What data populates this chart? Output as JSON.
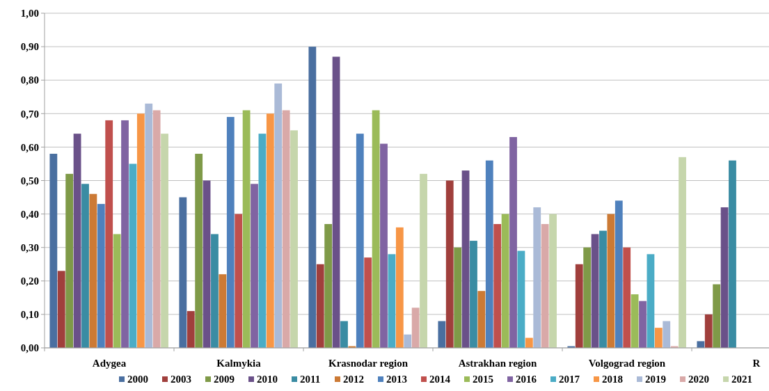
{
  "chart_data": {
    "type": "bar",
    "categories": [
      "Adygea",
      "Kalmykia",
      "Krasnodar region",
      "Astrakhan region",
      "Volgograd region",
      "R"
    ],
    "series": [
      {
        "name": "2000",
        "color": "#4a6fa0",
        "values": [
          0.58,
          0.45,
          0.9,
          0.08,
          0.005,
          0.02
        ]
      },
      {
        "name": "2003",
        "color": "#a03f3c",
        "values": [
          0.23,
          0.11,
          0.25,
          0.5,
          0.25,
          0.1
        ]
      },
      {
        "name": "2009",
        "color": "#7f9a48",
        "values": [
          0.52,
          0.58,
          0.37,
          0.3,
          0.3,
          0.19
        ]
      },
      {
        "name": "2010",
        "color": "#6a5189",
        "values": [
          0.64,
          0.5,
          0.87,
          0.53,
          0.34,
          0.42
        ]
      },
      {
        "name": "2011",
        "color": "#3a8ca3",
        "values": [
          0.49,
          0.34,
          0.08,
          0.32,
          0.35,
          0.56
        ]
      },
      {
        "name": "2012",
        "color": "#cc7a35",
        "values": [
          0.46,
          0.22,
          0.005,
          0.17,
          0.4,
          null
        ]
      },
      {
        "name": "2013",
        "color": "#4f81bd",
        "values": [
          0.43,
          0.69,
          0.64,
          0.56,
          0.44,
          null
        ]
      },
      {
        "name": "2014",
        "color": "#c0504d",
        "values": [
          0.68,
          0.4,
          0.27,
          0.37,
          0.3,
          null
        ]
      },
      {
        "name": "2015",
        "color": "#9bbb59",
        "values": [
          0.34,
          0.71,
          0.71,
          0.4,
          0.16,
          null
        ]
      },
      {
        "name": "2016",
        "color": "#8064a2",
        "values": [
          0.68,
          0.49,
          0.61,
          0.63,
          0.14,
          null
        ]
      },
      {
        "name": "2017",
        "color": "#4bacc6",
        "values": [
          0.55,
          0.64,
          0.28,
          0.29,
          0.28,
          null
        ]
      },
      {
        "name": "2018",
        "color": "#f79646",
        "values": [
          0.7,
          0.7,
          0.36,
          0.03,
          0.06,
          null
        ]
      },
      {
        "name": "2019",
        "color": "#aabad7",
        "values": [
          0.73,
          0.79,
          0.04,
          0.42,
          0.08,
          null
        ]
      },
      {
        "name": "2020",
        "color": "#d9a9a8",
        "values": [
          0.71,
          0.71,
          0.12,
          0.37,
          0.005,
          null
        ]
      },
      {
        "name": "2021",
        "color": "#c6d6ac",
        "values": [
          0.64,
          0.65,
          0.52,
          0.4,
          0.57,
          null
        ]
      }
    ],
    "ylim": [
      0,
      1
    ],
    "yticks": [
      {
        "value": 0,
        "label": "0,00"
      },
      {
        "value": 0.1,
        "label": "0,10"
      },
      {
        "value": 0.2,
        "label": "0,20"
      },
      {
        "value": 0.3,
        "label": "0,30"
      },
      {
        "value": 0.4,
        "label": "0,40"
      },
      {
        "value": 0.5,
        "label": "0,50"
      },
      {
        "value": 0.6,
        "label": "0,60"
      },
      {
        "value": 0.7,
        "label": "0,70"
      },
      {
        "value": 0.8,
        "label": "0,80"
      },
      {
        "value": 0.9,
        "label": "0,90"
      },
      {
        "value": 1,
        "label": "1,00"
      }
    ],
    "grid": "y",
    "legend": "bottom"
  }
}
